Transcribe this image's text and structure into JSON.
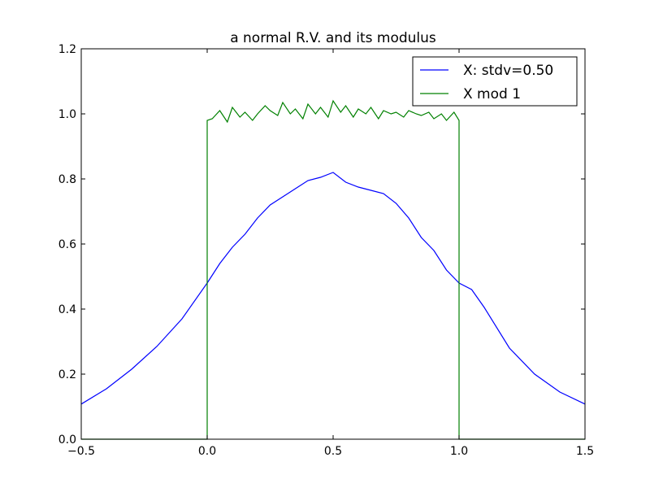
{
  "chart_data": {
    "type": "line",
    "title": "a normal R.V. and its modulus",
    "xlabel": "",
    "ylabel": "",
    "xlim": [
      -0.5,
      1.5
    ],
    "ylim": [
      0.0,
      1.2
    ],
    "xticks": [
      -0.5,
      0.0,
      0.5,
      1.0,
      1.5
    ],
    "xtick_labels": [
      "−0.5",
      "0.0",
      "0.5",
      "1.0",
      "1.5"
    ],
    "yticks": [
      0.0,
      0.2,
      0.4,
      0.6,
      0.8,
      1.0,
      1.2
    ],
    "ytick_labels": [
      "0.0",
      "0.2",
      "0.4",
      "0.6",
      "0.8",
      "1.0",
      "1.2"
    ],
    "grid": false,
    "legend_position": "top-right",
    "series": [
      {
        "name": "X: stdv=0.50",
        "color": "#0000ff",
        "x": [
          -0.5,
          -0.4,
          -0.3,
          -0.2,
          -0.1,
          0.0,
          0.05,
          0.1,
          0.15,
          0.2,
          0.25,
          0.3,
          0.35,
          0.4,
          0.45,
          0.5,
          0.55,
          0.6,
          0.65,
          0.7,
          0.75,
          0.8,
          0.85,
          0.9,
          0.95,
          1.0,
          1.05,
          1.1,
          1.2,
          1.3,
          1.4,
          1.5
        ],
        "y": [
          0.108,
          0.155,
          0.215,
          0.285,
          0.37,
          0.48,
          0.54,
          0.59,
          0.63,
          0.68,
          0.72,
          0.745,
          0.77,
          0.795,
          0.805,
          0.82,
          0.79,
          0.775,
          0.765,
          0.755,
          0.725,
          0.68,
          0.62,
          0.58,
          0.52,
          0.48,
          0.46,
          0.405,
          0.28,
          0.2,
          0.145,
          0.108
        ]
      },
      {
        "name": "X mod 1",
        "color": "#008000",
        "x": [
          -0.5,
          0.0,
          0.0,
          0.02,
          0.05,
          0.08,
          0.1,
          0.13,
          0.15,
          0.18,
          0.2,
          0.23,
          0.25,
          0.28,
          0.3,
          0.33,
          0.35,
          0.38,
          0.4,
          0.43,
          0.45,
          0.48,
          0.5,
          0.53,
          0.55,
          0.58,
          0.6,
          0.63,
          0.65,
          0.68,
          0.7,
          0.73,
          0.75,
          0.78,
          0.8,
          0.83,
          0.85,
          0.88,
          0.9,
          0.93,
          0.95,
          0.98,
          1.0,
          1.0,
          1.5
        ],
        "y": [
          0.0,
          0.0,
          0.98,
          0.985,
          1.01,
          0.975,
          1.02,
          0.99,
          1.005,
          0.98,
          1.0,
          1.025,
          1.01,
          0.995,
          1.035,
          1.0,
          1.015,
          0.985,
          1.03,
          1.0,
          1.02,
          0.99,
          1.04,
          1.005,
          1.025,
          0.99,
          1.015,
          1.0,
          1.02,
          0.985,
          1.01,
          1.0,
          1.005,
          0.99,
          1.01,
          1.0,
          0.995,
          1.005,
          0.985,
          1.0,
          0.98,
          1.005,
          0.98,
          0.0,
          0.0
        ]
      }
    ]
  }
}
